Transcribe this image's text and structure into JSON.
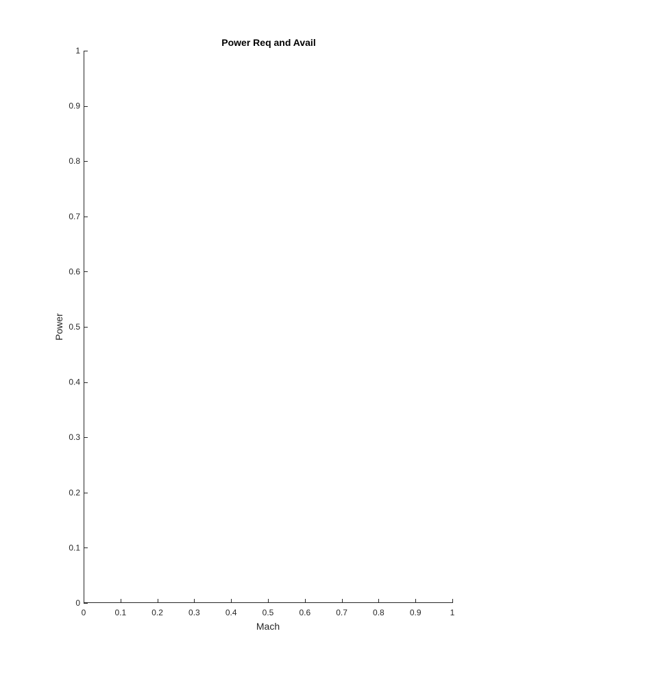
{
  "chart_data": {
    "type": "line",
    "title": "Power Req and Avail",
    "xlabel": "Mach",
    "ylabel": "Power",
    "xlim": [
      0,
      1
    ],
    "ylim": [
      0,
      1
    ],
    "xticks": [
      0,
      0.1,
      0.2,
      0.3,
      0.4,
      0.5,
      0.6,
      0.7,
      0.8,
      0.9,
      1
    ],
    "yticks": [
      0,
      0.1,
      0.2,
      0.3,
      0.4,
      0.5,
      0.6,
      0.7,
      0.8,
      0.9,
      1
    ],
    "xtick_labels": [
      "0",
      "0.1",
      "0.2",
      "0.3",
      "0.4",
      "0.5",
      "0.6",
      "0.7",
      "0.8",
      "0.9",
      "1"
    ],
    "ytick_labels": [
      "0",
      "0.1",
      "0.2",
      "0.3",
      "0.4",
      "0.5",
      "0.6",
      "0.7",
      "0.8",
      "0.9",
      "1"
    ],
    "series": [],
    "grid": false,
    "legend": "none",
    "colors": {
      "axis": "#262626",
      "background": "#ffffff"
    }
  }
}
